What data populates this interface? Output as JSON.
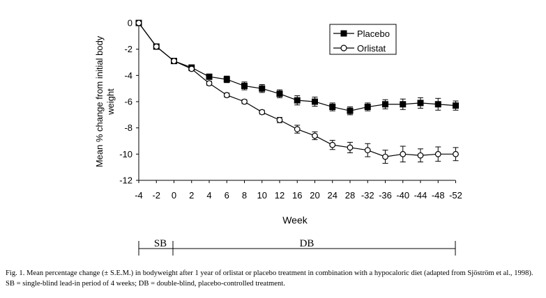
{
  "chart_data": {
    "type": "line",
    "title": "",
    "xlabel": "Week",
    "ylabel": "Mean % change from initial body weight",
    "ylabel_lines": [
      "Mean % change from initial body",
      "weight"
    ],
    "categories": [
      "-4",
      "-2",
      "0",
      "2",
      "4",
      "6",
      "8",
      "10",
      "12",
      "16",
      "20",
      "24",
      "28",
      "-32",
      "-36",
      "-40",
      "-44",
      "-48",
      "-52"
    ],
    "yticks": [
      "0",
      "-2",
      "-4",
      "-6",
      "-8",
      "-10",
      "-12"
    ],
    "ylim": [
      -12,
      0
    ],
    "grid": false,
    "legend": "top-right",
    "series": [
      {
        "name": "Placebo",
        "marker": "filled-square",
        "values": [
          0,
          -1.8,
          -2.9,
          -3.4,
          -4.1,
          -4.3,
          -4.8,
          -5.0,
          -5.4,
          -5.9,
          -6.0,
          -6.4,
          -6.7,
          -6.4,
          -6.2,
          -6.2,
          -6.1,
          -6.2,
          -6.3
        ],
        "errors": [
          0,
          0,
          0,
          0.15,
          0.2,
          0.25,
          0.3,
          0.3,
          0.3,
          0.35,
          0.35,
          0.3,
          0.3,
          0.3,
          0.35,
          0.4,
          0.4,
          0.45,
          0.35
        ]
      },
      {
        "name": "Orlistat",
        "marker": "open-circle",
        "values": [
          0,
          -1.8,
          -2.9,
          -3.5,
          -4.6,
          -5.5,
          -6.0,
          -6.8,
          -7.4,
          -8.1,
          -8.6,
          -9.3,
          -9.5,
          -9.7,
          -10.2,
          -10.0,
          -10.1,
          -10.0,
          -10.0
        ],
        "errors": [
          0,
          0,
          0,
          0.15,
          0.15,
          0.15,
          0.15,
          0.15,
          0.2,
          0.3,
          0.3,
          0.35,
          0.4,
          0.5,
          0.5,
          0.6,
          0.5,
          0.55,
          0.5
        ]
      }
    ],
    "periods": [
      {
        "label": "SB",
        "from": "-4",
        "to": "0"
      },
      {
        "label": "DB",
        "from": "0",
        "to": "-52"
      }
    ]
  },
  "caption": "Fig. 1. Mean percentage change (± S.E.M.) in bodyweight after 1 year of orlistat or placebo treatment in combination with a hypocaloric diet (adapted from Sjöström et al., 1998). SB = single-blind lead-in period of 4 weeks; DB = double-blind, placebo-controlled treatment.",
  "colors": {
    "ink": "#000000",
    "background": "#ffffff"
  }
}
